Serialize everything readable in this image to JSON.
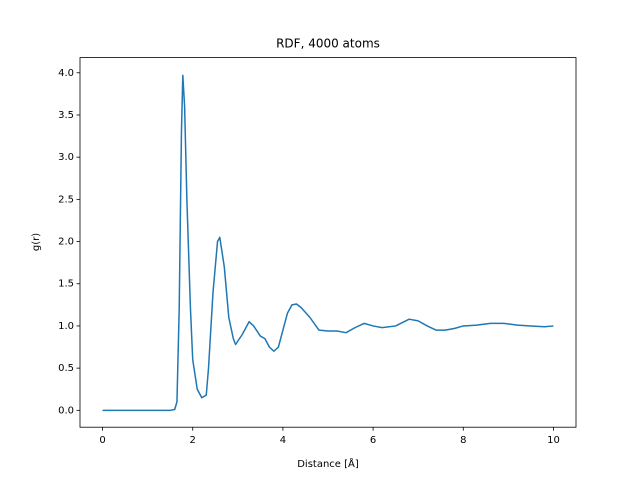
{
  "chart_data": {
    "type": "line",
    "title": "RDF, 4000 atoms",
    "xlabel": "Distance [Å]",
    "ylabel": "g(r)",
    "x": [
      0,
      1.5,
      1.6,
      1.65,
      1.7,
      1.75,
      1.78,
      1.82,
      1.87,
      1.95,
      2.0,
      2.1,
      2.2,
      2.3,
      2.35,
      2.45,
      2.55,
      2.6,
      2.7,
      2.8,
      2.9,
      2.95,
      3.1,
      3.25,
      3.35,
      3.5,
      3.6,
      3.7,
      3.8,
      3.9,
      4.0,
      4.1,
      4.2,
      4.3,
      4.4,
      4.6,
      4.8,
      5.0,
      5.2,
      5.4,
      5.6,
      5.8,
      6.0,
      6.2,
      6.5,
      6.8,
      7.0,
      7.2,
      7.4,
      7.6,
      7.8,
      8.0,
      8.3,
      8.6,
      8.9,
      9.2,
      9.5,
      9.8,
      10.0
    ],
    "series": [
      {
        "color": "#1f77b4",
        "values": [
          0,
          0,
          0.01,
          0.1,
          1.2,
          3.3,
          3.97,
          3.6,
          2.5,
          1.2,
          0.6,
          0.25,
          0.15,
          0.18,
          0.5,
          1.4,
          2.0,
          2.05,
          1.7,
          1.1,
          0.85,
          0.78,
          0.9,
          1.05,
          1.0,
          0.88,
          0.85,
          0.75,
          0.7,
          0.75,
          0.95,
          1.15,
          1.25,
          1.26,
          1.22,
          1.1,
          0.95,
          0.94,
          0.94,
          0.92,
          0.98,
          1.03,
          1.0,
          0.98,
          1.0,
          1.08,
          1.06,
          1.0,
          0.95,
          0.95,
          0.97,
          1.0,
          1.01,
          1.03,
          1.03,
          1.01,
          1.0,
          0.99,
          1.0
        ]
      }
    ],
    "xlim": [
      -0.5,
      10.5
    ],
    "xticks": [
      0,
      2,
      4,
      6,
      8,
      10
    ],
    "ylim": [
      -0.2,
      4.18
    ],
    "yticks": [
      {
        "value": 0,
        "label": "0.0"
      },
      {
        "value": 0.5,
        "label": "0.5"
      },
      {
        "value": 1,
        "label": "1.0"
      },
      {
        "value": 1.5,
        "label": "1.5"
      },
      {
        "value": 2,
        "label": "2.0"
      },
      {
        "value": 2.5,
        "label": "2.5"
      },
      {
        "value": 3,
        "label": "3.0"
      },
      {
        "value": 3.5,
        "label": "3.5"
      },
      {
        "value": 4,
        "label": "4.0"
      }
    ]
  }
}
